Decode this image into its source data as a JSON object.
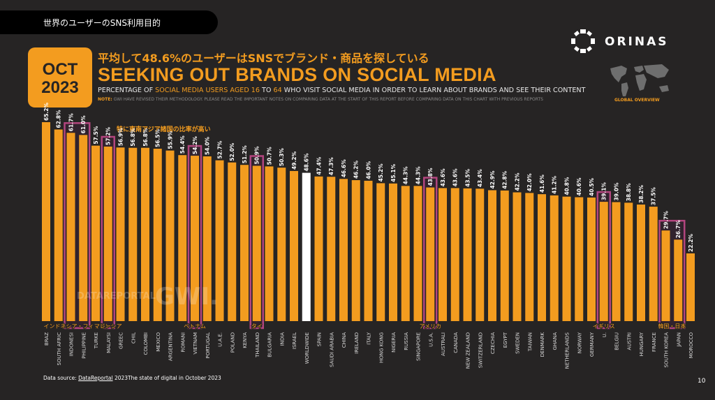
{
  "header": {
    "title": "世界のユーザーのSNS利用目的"
  },
  "brand": {
    "name": "ORINAS"
  },
  "badge": {
    "month": "OCT",
    "year": "2023"
  },
  "headline_jp": "平均して48.6%のユーザーはSNSでブランド・商品を探している",
  "subtitle": {
    "part1": "PERCENTAGE OF ",
    "highlight1": "SOCIAL MEDIA USERS AGED ",
    "age_from": "16",
    "to": " TO ",
    "age_to": "64",
    "part2": " WHO VISIT SOCIAL MEDIA IN ORDER TO LEARN ABOUT BRANDS AND SEE THEIR CONTENT"
  },
  "note": {
    "label": "NOTE:",
    "text": "GWI HAVE REVISED THEIR METHODOLOGY. PLEASE READ THE IMPORTANT NOTES ON COMPARING DATA AT THE START OF THIS REPORT BEFORE COMPARING DATA ON THIS CHART WITH PREVIOUS REPORTS"
  },
  "map_label": "GLOBAL OVERVIEW",
  "chart_annotation": "特に東南アジア諸国の比率が高い",
  "watermarks": {
    "datareportal": "DATAREPORTAL",
    "gwi": "GWI."
  },
  "chart_data": {
    "type": "bar",
    "title": "SEEKING OUT BRANDS ON SOCIAL MEDIA",
    "categories": [
      "BRAZIL",
      "SOUTH AFRICA",
      "INDONESIA",
      "PHILIPPINES",
      "TURKEY",
      "MALAYSIA",
      "GREECE",
      "CHILE",
      "COLOMBIA",
      "MEXICO",
      "ARGENTINA",
      "ROMANIA",
      "VIETNAM",
      "PORTUGAL",
      "U.A.E.",
      "POLAND",
      "KENYA",
      "THAILAND",
      "BULGARIA",
      "INDIA",
      "ISRAEL",
      "WORLDWIDE",
      "SPAIN",
      "SAUDI ARABIA",
      "CHINA",
      "IRELAND",
      "ITALY",
      "HONG KONG",
      "NIGERIA",
      "RUSSIA",
      "SINGAPORE",
      "U.S.A.",
      "AUSTRALIA",
      "CANADA",
      "NEW ZEALAND",
      "SWITZERLAND",
      "CZECHIA",
      "EGYPT",
      "SWEDEN",
      "TAIWAN",
      "DENMARK",
      "GHANA",
      "NETHERLANDS",
      "NORWAY",
      "GERMANY",
      "U.K.",
      "BELGIUM",
      "AUSTRIA",
      "HUNGARY",
      "FRANCE",
      "SOUTH KOREA",
      "JAPAN",
      "MOROCCO"
    ],
    "display_labels": [
      "BRAZ",
      "SOUTH AFRIC",
      "INDONESI",
      "PHILIPPINE",
      "TURKE",
      "MALAYSI",
      "GREEC",
      "CHIL",
      "COLOMBI",
      "MEXICO",
      "ARGENTINA",
      "ROMANI",
      "VIETNAM",
      "PORTUGAL",
      "U.A.E.",
      "POLAND",
      "KENYA",
      "THAILAND",
      "BULGARIA",
      "INDIA",
      "ISRAEL",
      "WORLDWIDE",
      "SPAIN",
      "SAUDI ARABIA",
      "CHINA",
      "IRELAND",
      "ITALY",
      "HONG KONG",
      "NIGERIA",
      "RUSSIA",
      "SINGAPORE",
      "U.S.A.",
      "AUSTRALI",
      "CANADA",
      "NEW ZEALAND",
      "SWITZERLAND",
      "CZECHIA",
      "EGYPT",
      "SWEDEN",
      "TAIWAN",
      "DENMARK",
      "GHANA",
      "NETHERLANDS",
      "NORWAY",
      "GERMANY",
      "U.",
      "BELGIU",
      "AUSTRI",
      "HUNGARY",
      "FRANCE",
      "SOUTH KOREA",
      "JAPAN",
      "MOROCCO"
    ],
    "values": [
      65.2,
      62.8,
      61.7,
      61.0,
      57.5,
      57.2,
      56.9,
      56.8,
      56.8,
      56.5,
      55.9,
      54.4,
      54.2,
      54.0,
      52.7,
      52.0,
      51.2,
      50.9,
      50.7,
      50.3,
      49.2,
      48.6,
      47.4,
      47.3,
      46.6,
      46.2,
      46.0,
      45.2,
      45.1,
      44.3,
      44.3,
      43.8,
      43.6,
      43.6,
      43.5,
      43.4,
      42.9,
      42.8,
      42.2,
      42.0,
      41.6,
      41.2,
      40.8,
      40.6,
      40.5,
      39.1,
      39.0,
      38.8,
      38.2,
      37.5,
      29.7,
      26.7,
      22.2
    ],
    "value_labels": [
      "65.2%",
      "62.8%",
      "61.7%",
      "61.0%",
      "57.5%",
      "57.2%",
      "56.9%",
      "56.8%",
      "56.8%",
      "56.5%",
      "55.9%",
      "54.4%",
      "54.2%",
      "54.0%",
      "52.7%",
      "52.0%",
      "51.2%",
      "50.9%",
      "50.7%",
      "50.3%",
      "49.2%",
      "48.6%",
      "47.4%",
      "47.3%",
      "46.6%",
      "46.2%",
      "46.0%",
      "45.2%",
      "45.1%",
      "44.3%",
      "44.3%",
      "43.8%",
      "43.6%",
      "43.6%",
      "43.5%",
      "43.4%",
      "42.9%",
      "42.8%",
      "42.2%",
      "42.0%",
      "41.6%",
      "41.2%",
      "40.8%",
      "40.6%",
      "40.5%",
      "39.1%",
      "39.0%",
      "38.8%",
      "38.2%",
      "37.5%",
      "29.7%",
      "26.7%",
      "22.2%"
    ],
    "highlight_index": 21,
    "ylim": [
      0,
      70
    ],
    "colors": {
      "bar": "#f39c1f",
      "highlight": "#ffffff",
      "box": "#b2457e",
      "box_fill": "#3a2035",
      "label_jp": "#f39c1f"
    },
    "callouts": [
      {
        "label": "インドネシア・フィリピン",
        "start": 2,
        "end": 3
      },
      {
        "label": "マレーシア",
        "start": 5,
        "end": 5
      },
      {
        "label": "ベトナム",
        "start": 12,
        "end": 12
      },
      {
        "label": "タイ",
        "start": 17,
        "end": 17
      },
      {
        "label": "アメリカ",
        "start": 31,
        "end": 31
      },
      {
        "label": "イギリス",
        "start": 45,
        "end": 45
      },
      {
        "label": "韓国・日本",
        "start": 50,
        "end": 51
      }
    ]
  },
  "source": {
    "prefix": "Data source: ",
    "link": "DataReportal",
    "suffix": " 2023The state of digital in October 2023"
  },
  "page_number": "10"
}
